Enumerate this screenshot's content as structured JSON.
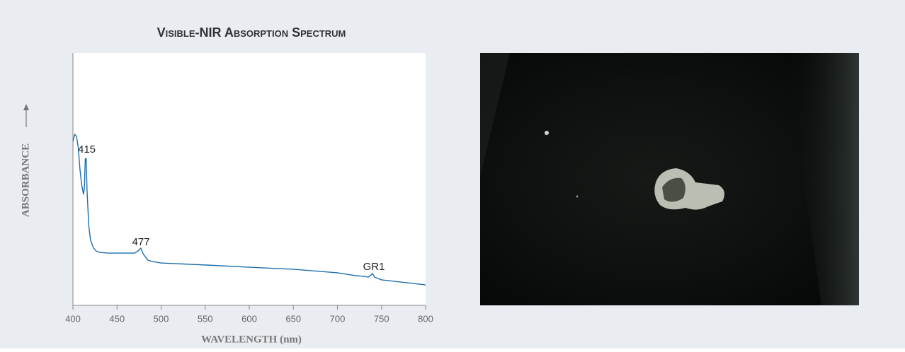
{
  "chart_data": {
    "type": "line",
    "title": "Visible-NIR Absorption Spectrum",
    "xlabel": "WAVELENGTH (nm)",
    "ylabel": "ABSORBANCE",
    "x": [
      400,
      402,
      404,
      406,
      408,
      410,
      412,
      413,
      414,
      415,
      416,
      418,
      420,
      423,
      426,
      430,
      440,
      450,
      460,
      470,
      474,
      477,
      480,
      485,
      490,
      500,
      550,
      600,
      650,
      700,
      720,
      730,
      735,
      740,
      742,
      750,
      800
    ],
    "values": [
      65,
      67.8,
      67,
      62.7,
      53.8,
      47.6,
      44,
      46.8,
      58,
      58.3,
      45.4,
      31.4,
      25.8,
      23,
      21.6,
      21,
      20.7,
      20.7,
      20.7,
      20.7,
      21.6,
      22.7,
      20.2,
      17.9,
      17.4,
      16.8,
      16,
      15.1,
      14.3,
      12.9,
      11.8,
      11.5,
      11.2,
      12.6,
      11.2,
      10.1,
      8.1
    ],
    "color": "#1f6fae",
    "xlim": [
      400,
      800
    ],
    "xticks": [
      400,
      450,
      500,
      550,
      600,
      650,
      700,
      750,
      800
    ],
    "ylim": [
      0,
      100
    ],
    "annotations": [
      "415",
      "477",
      "GR1"
    ]
  }
}
